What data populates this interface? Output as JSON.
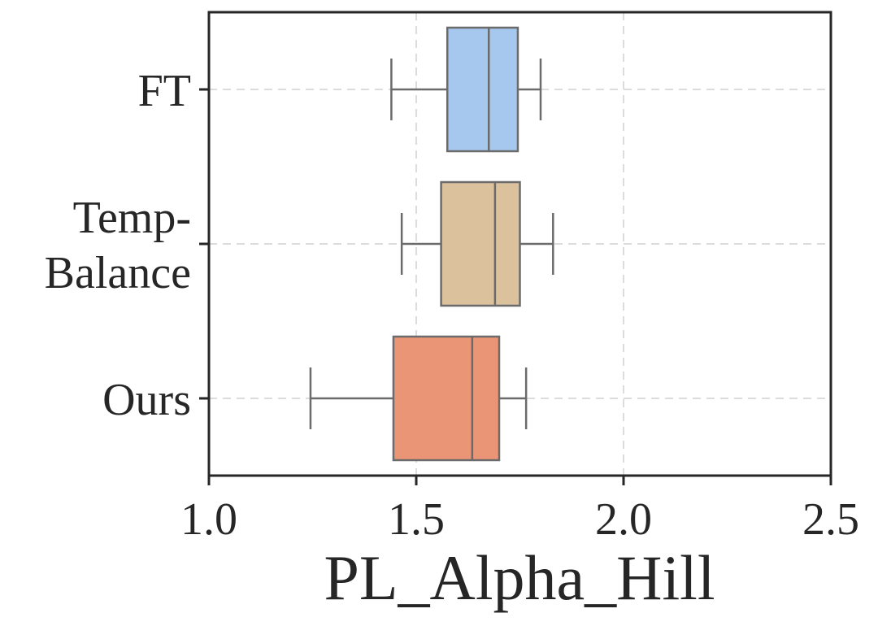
{
  "chart_data": {
    "type": "boxplot",
    "orientation": "horizontal",
    "title": "",
    "xlabel": "PL_Alpha_Hill",
    "ylabel": "",
    "xlim": [
      1.0,
      2.5
    ],
    "xticks": [
      "1.0",
      "1.5",
      "2.0",
      "2.5"
    ],
    "grid": true,
    "categories": [
      {
        "label_lines": [
          "FT"
        ],
        "color": "#a6c8ef",
        "whisker_low": 1.44,
        "q1": 1.575,
        "median": 1.675,
        "q3": 1.745,
        "whisker_high": 1.8
      },
      {
        "label_lines": [
          "Temp-",
          "Balance"
        ],
        "color": "#dcc29c",
        "whisker_low": 1.465,
        "q1": 1.56,
        "median": 1.69,
        "q3": 1.75,
        "whisker_high": 1.83
      },
      {
        "label_lines": [
          "Ours"
        ],
        "color": "#e99576",
        "whisker_low": 1.245,
        "q1": 1.445,
        "median": 1.635,
        "q3": 1.7,
        "whisker_high": 1.765
      }
    ]
  }
}
